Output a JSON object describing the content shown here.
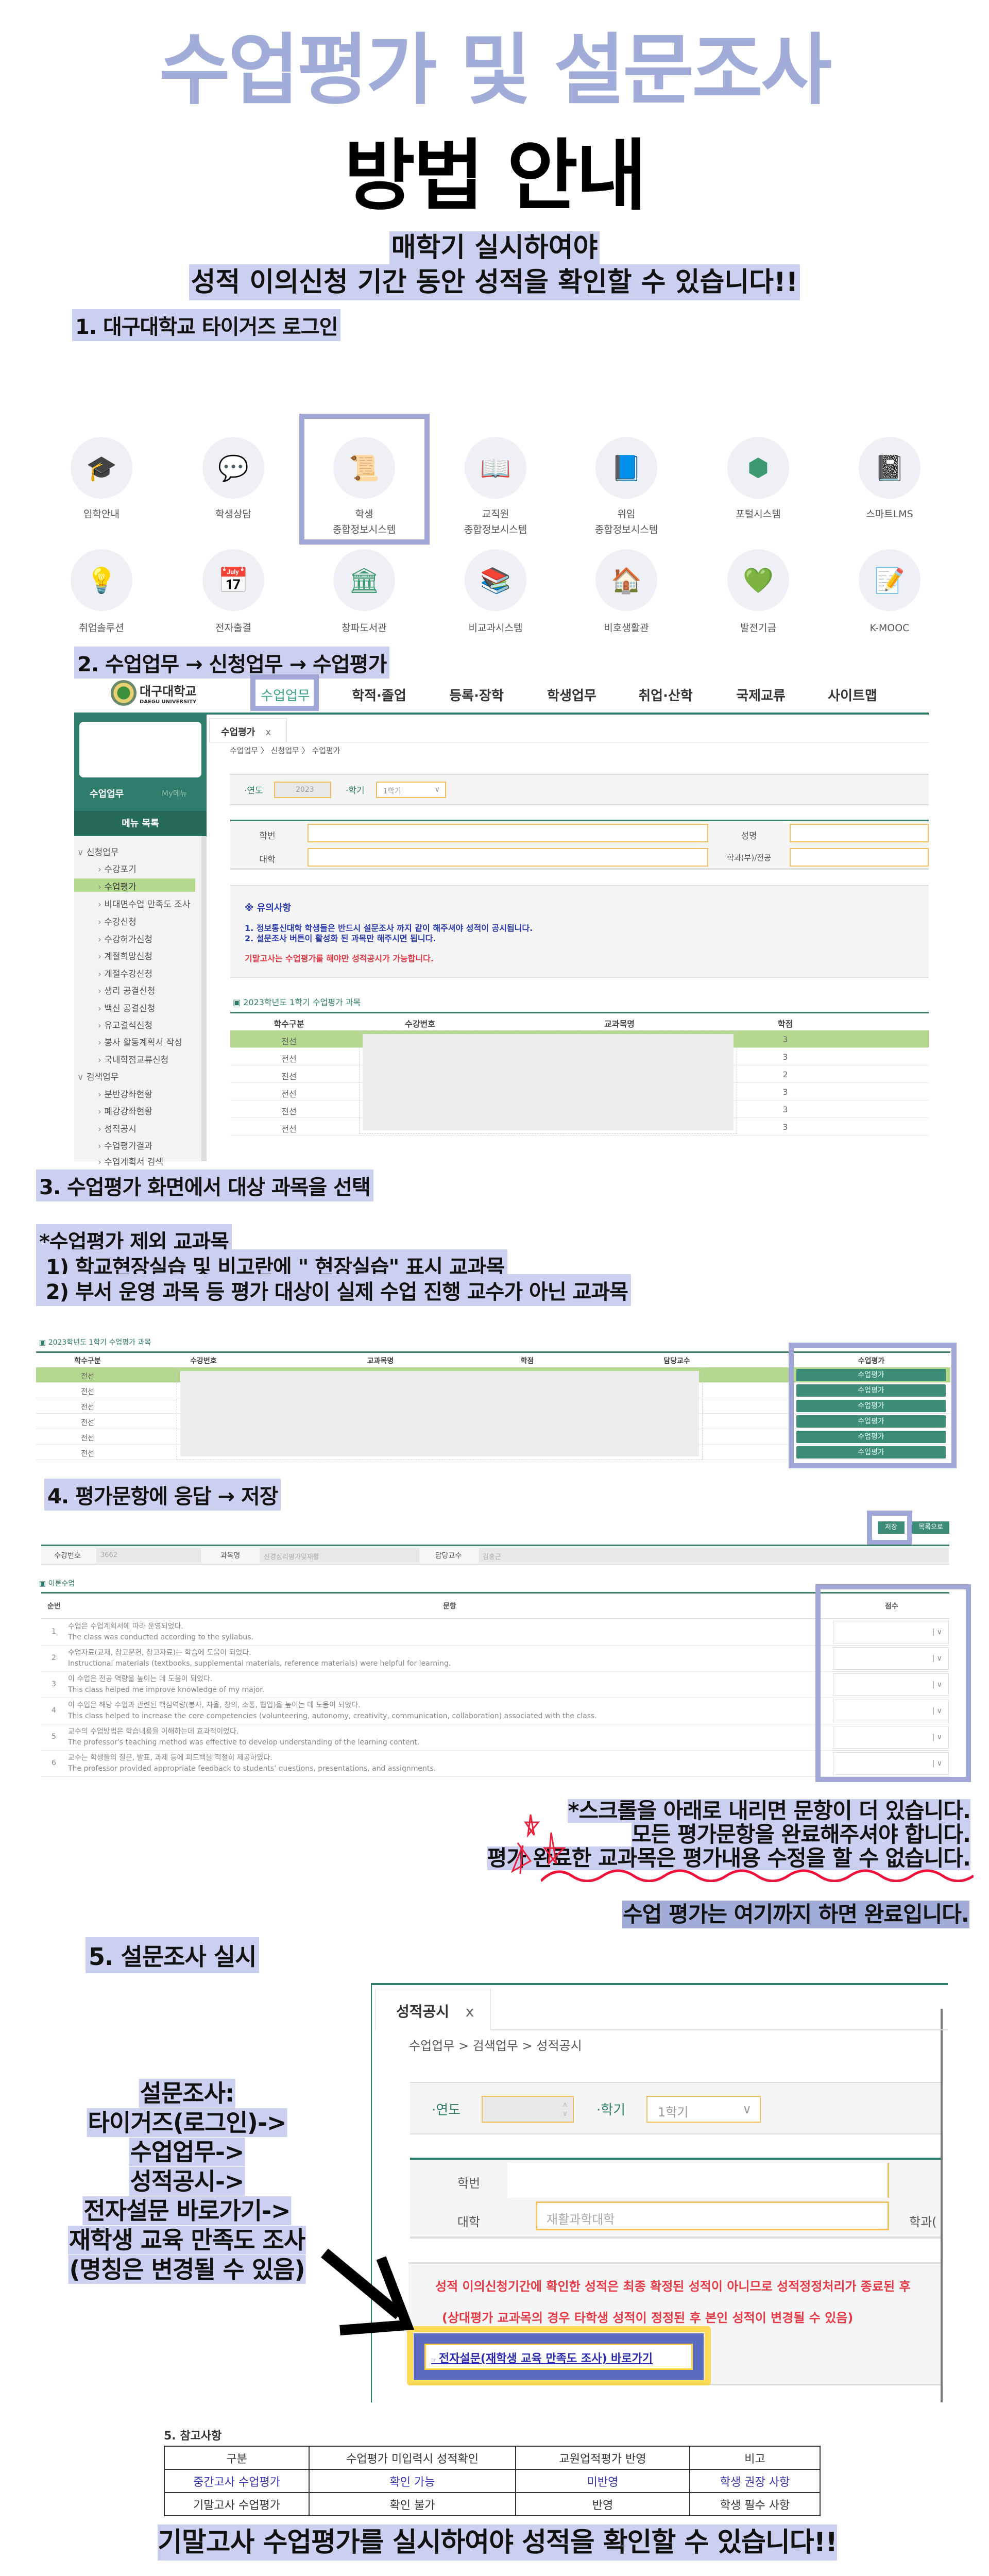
{
  "header": {
    "title": "수업평가 및 설문조사",
    "subtitle": "방법 안내",
    "notice_line1": "매학기 실시하여야",
    "notice_line2": "성적 이의신청 기간 동안 성적을 확인할 수 있습니다!!"
  },
  "colors": {
    "accent_lavender": "#a1acd8",
    "highlight": "#ccd0f0",
    "portal_green": "#2e7d6a",
    "selected_row": "#b5d88f",
    "warning_red": "#e53945"
  },
  "step1": {
    "heading": "1. 대구대학교 타이거즈 로그인",
    "icons": [
      {
        "label": "입학안내",
        "icon": "graduate-icon",
        "glyph": "🎓"
      },
      {
        "label": "학생상담",
        "icon": "chat-icon",
        "glyph": "💬"
      },
      {
        "label": "학생",
        "label2": "종합정보시스템",
        "icon": "scroll-icon",
        "glyph": "📜"
      },
      {
        "label": "교직원",
        "label2": "종합정보시스템",
        "icon": "book-icon",
        "glyph": "📖"
      },
      {
        "label": "위임",
        "label2": "종합정보시스템",
        "icon": "cap-book-icon",
        "glyph": "📘"
      },
      {
        "label": "포털시스템",
        "icon": "network-icon",
        "glyph": "⬢"
      },
      {
        "label": "스마트LMS",
        "icon": "notebook-icon",
        "glyph": "📓"
      },
      {
        "label": "취업솔루션",
        "icon": "lightbulb-icon",
        "glyph": "💡"
      },
      {
        "label": "전자출결",
        "icon": "calendar-check-icon",
        "glyph": "📅"
      },
      {
        "label": "창파도서관",
        "icon": "library-icon",
        "glyph": "🏛"
      },
      {
        "label": "비교과시스템",
        "icon": "books-icon",
        "glyph": "📚"
      },
      {
        "label": "비호생활관",
        "icon": "house-icon",
        "glyph": "🏠"
      },
      {
        "label": "발전기금",
        "icon": "heart-hand-icon",
        "glyph": "💚"
      },
      {
        "label": "K-MOOC",
        "icon": "notepad-icon",
        "glyph": "📝"
      }
    ]
  },
  "step2": {
    "heading": "2. 수업업무 → 신청업무 → 수업평가",
    "logo_name": "대구대학교",
    "logo_sub": "DAEGU UNIVERSITY",
    "nav": [
      "수업업무",
      "학적·졸업",
      "등록·장학",
      "학생업무",
      "취업·산학",
      "국제교류",
      "사이트맵"
    ],
    "side_tabs": [
      "수업업무",
      "My메뉴"
    ],
    "menu_title": "메뉴 목록",
    "menu": [
      "신청업무",
      "수강포기",
      "수업평가",
      "비대면수업 만족도 조사",
      "수강신청",
      "수강허가신청",
      "계절희망신청",
      "계절수강신청",
      "생리 공결신청",
      "백신 공결신청",
      "유고결석신청",
      "봉사 활동계획서 작성",
      "국내학점교류신청",
      "검색업무",
      "분반강좌현황",
      "폐강강좌현황",
      "성적공시",
      "수업평가결과",
      "수업계획서 검색"
    ],
    "tab": "수업평가",
    "tab_close": "x",
    "breadcrumb": "수업업무 〉 신청업무 〉 수업평가",
    "year_label": "·연도",
    "year_value": "2023",
    "term_label": "·학기",
    "term_value": "1학기",
    "form_labels": [
      "학번",
      "성명",
      "대학",
      "학과(부)/전공"
    ],
    "notice_title": "※ 유의사항",
    "notice_1": "1. 정보통신대학 학생들은 반드시 설문조사 까지 같이 해주셔야 성적이 공시됩니다.",
    "notice_2": "2. 설문조사 버튼이 활성화 된 과목만 해주시면 됩니다.",
    "notice_red": "기말고사는 수업평가를 해야만 성적공시가 가능합니다.",
    "table_caption": "2023학년도 1학기 수업평가 과목",
    "columns": [
      "학수구분",
      "수강번호",
      "교과목명",
      "학점"
    ],
    "rows": [
      {
        "type": "전선",
        "credit": "3"
      },
      {
        "type": "전선",
        "credit": "3"
      },
      {
        "type": "전선",
        "credit": "2"
      },
      {
        "type": "전선",
        "credit": "3"
      },
      {
        "type": "전선",
        "credit": "3"
      },
      {
        "type": "전선",
        "credit": "3"
      }
    ]
  },
  "step3": {
    "heading": "3. 수업평가 화면에서 대상 과목을 선택",
    "excl_title": "*수업평가 제외 교과목",
    "excl_1": " 1) 학교현장실습 및 비고란에 \" 현장실습\" 표시 교과목",
    "excl_2": " 2) 부서 운영 과목 등 평가 대상이 실제 수업 진행 교수가 아닌 교과목",
    "table_caption": "2023학년도 1학기 수업평가 과목",
    "columns": [
      "학수구분",
      "수강번호",
      "교과목명",
      "학점",
      "담당교수",
      "수업평가"
    ],
    "rows": [
      "전선",
      "전선",
      "전선",
      "전선",
      "전선",
      "전선"
    ],
    "eval_button": "수업평가"
  },
  "step4": {
    "heading": "4. 평가문항에 응답 → 저장",
    "save": "저장",
    "back": "목록으로",
    "info_labels": [
      "수강번호",
      "과목명",
      "담당교수"
    ],
    "info_values": [
      "3662",
      "신경심리평가및재활",
      "김홍근"
    ],
    "section": "이론수업",
    "columns": [
      "순번",
      "문항",
      "점수"
    ],
    "questions": [
      {
        "no": "1",
        "ko": "수업은 수업계획서에 따라 운영되었다.",
        "en": "The class was conducted according to the syllabus."
      },
      {
        "no": "2",
        "ko": "수업자료(교재, 참고문헌, 참고자료)는 학습에 도움이 되었다.",
        "en": "Instructional materials (textbooks, supplemental materials, reference materials) were helpful for learning."
      },
      {
        "no": "3",
        "ko": "이 수업은 전공 역량을 높이는 데 도움이 되었다.",
        "en": "This class helped me improve knowledge of my major."
      },
      {
        "no": "4",
        "ko": "이 수업은 해당 수업과 관련된 핵심역량(봉사, 자율, 창의, 소통, 협업)을 높이는 데 도움이 되었다.",
        "en": "This class helped to increase the core competencies (volunteering, autonomy, creativity, communication, collaboration) associated with the class."
      },
      {
        "no": "5",
        "ko": "교수의 수업방법은 학습내용을 이해하는데 효과적이었다.",
        "en": "The professor's teaching method was effective to develop understanding of the learning content."
      },
      {
        "no": "6",
        "ko": "교수는 학생들의 질문, 발표, 과제 등에 피드백을 적절히 제공하였다.",
        "en": "The professor provided appropriate feedback to students' questions, presentations, and assignments."
      }
    ],
    "note_1": "*스크롤을 아래로 내리면 문항이 더 있습니다.",
    "note_2": "모든 평가문항을 완료해주셔야 합니다.",
    "note_3": "평가 완료한 교과목은 평가내용 수정을 할 수 없습니다.",
    "done": "수업 평가는 여기까지 하면 완료입니다."
  },
  "step5": {
    "heading": "5. 설문조사 실시",
    "path_lines": [
      "설문조사:",
      "타이거즈(로그인)->",
      "수업업무->",
      "성적공시->",
      "전자설문 바로가기->",
      "재학생 교육 만족도 조사",
      "(명칭은 변경될 수 있음)"
    ],
    "tab": "성적공시",
    "tab_close": "x",
    "breadcrumb": "수업업무 > 검색업무 > 성적공시",
    "year_label": "·연도",
    "term_label": "·학기",
    "term_value": "1학기",
    "form_labels": [
      "학번",
      "대학",
      "학과("
    ],
    "college_value": "재활과학대학",
    "red_1": "성적 이의신청기간에 확인한 성적은 최종 확정된 성적이 아니므로 성적정정처리가 종료된 후",
    "red_2": "(상대평가 교과목의 경우 타학생 성적이 정정된 후 본인 성적이 변경될 수 있음)",
    "survey_link": "전자설문(재학생 교육 만족도 조사) 바로가기"
  },
  "reference": {
    "title": "5. 참고사항",
    "header": [
      "구분",
      "수업평가 미입력시 성적확인",
      "교원업적평가 반영",
      "비고"
    ],
    "rows": [
      [
        "중간고사 수업평가",
        "확인 가능",
        "미반영",
        "학생 권장 사항"
      ],
      [
        "기말고사 수업평가",
        "확인 불가",
        "반영",
        "학생 필수 사항"
      ]
    ]
  },
  "footer": "기말고사 수업평가를 실시하여야 성적을 확인할 수 있습니다!!"
}
